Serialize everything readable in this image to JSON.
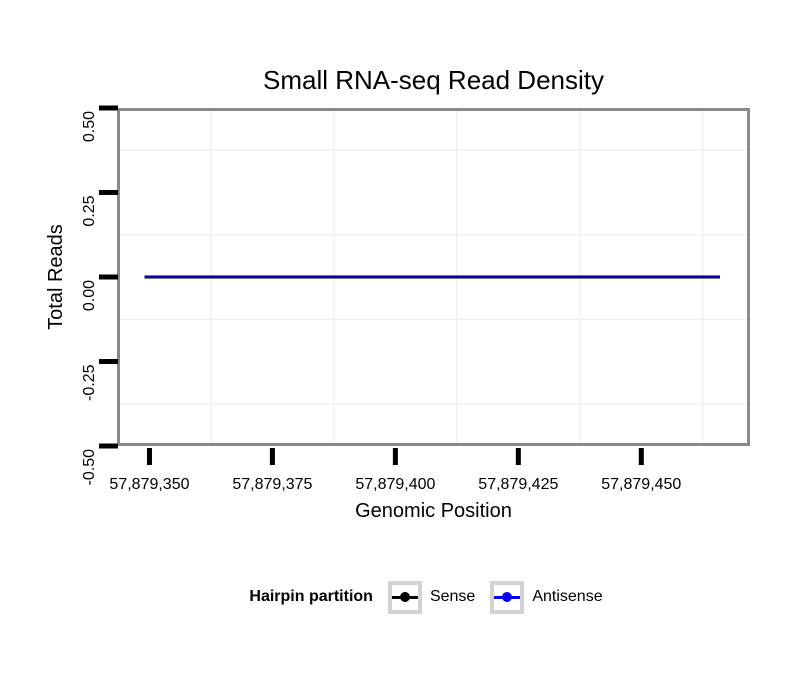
{
  "figure": {
    "background": "#FFFFFF",
    "panel_border_color": "#8A8A8A",
    "minor_grid_color": "#F2F2F2",
    "tick_color": "#000000",
    "text_color": "#000000"
  },
  "chart_data": {
    "type": "line",
    "title": "Small RNA-seq Read Density",
    "xlabel": "Genomic Position",
    "ylabel": "Total Reads",
    "xlim": [
      57879343.4,
      57879472.1
    ],
    "ylim": [
      -0.5,
      0.5
    ],
    "x_ticks": [
      {
        "value": 57879350,
        "label": "57,879,350"
      },
      {
        "value": 57879375,
        "label": "57,879,375"
      },
      {
        "value": 57879400,
        "label": "57,879,400"
      },
      {
        "value": 57879425,
        "label": "57,879,425"
      },
      {
        "value": 57879450,
        "label": "57,879,450"
      }
    ],
    "y_ticks": [
      {
        "value": 0.5,
        "label": "0.50"
      },
      {
        "value": 0.25,
        "label": "0.25"
      },
      {
        "value": 0.0,
        "label": "0.00"
      },
      {
        "value": -0.25,
        "label": "-0.25"
      },
      {
        "value": -0.5,
        "label": "-0.50"
      }
    ],
    "grid": "minor-only",
    "minor_grid_x": [
      57879362.5,
      57879387.5,
      57879412.5,
      57879437.5,
      57879462.5
    ],
    "minor_grid_y": [
      0.375,
      0.125,
      -0.125,
      -0.375
    ],
    "series": [
      {
        "name": "Sense",
        "color": "#000000",
        "linewidth": 3.0,
        "x": [
          57879349,
          57879466
        ],
        "y": [
          0,
          0
        ]
      },
      {
        "name": "Antisense",
        "color": "#0000EE",
        "linewidth": 1.6,
        "x": [
          57879349,
          57879466
        ],
        "y": [
          0,
          0
        ]
      }
    ],
    "legend": {
      "position": "bottom",
      "title": "Hairpin partition",
      "key_border_color": "#D3D3D3",
      "key_fill": "#FFFFFF",
      "entries": [
        {
          "label": "Sense",
          "color": "#000000"
        },
        {
          "label": "Antisense",
          "color": "#0000EE"
        }
      ]
    }
  }
}
